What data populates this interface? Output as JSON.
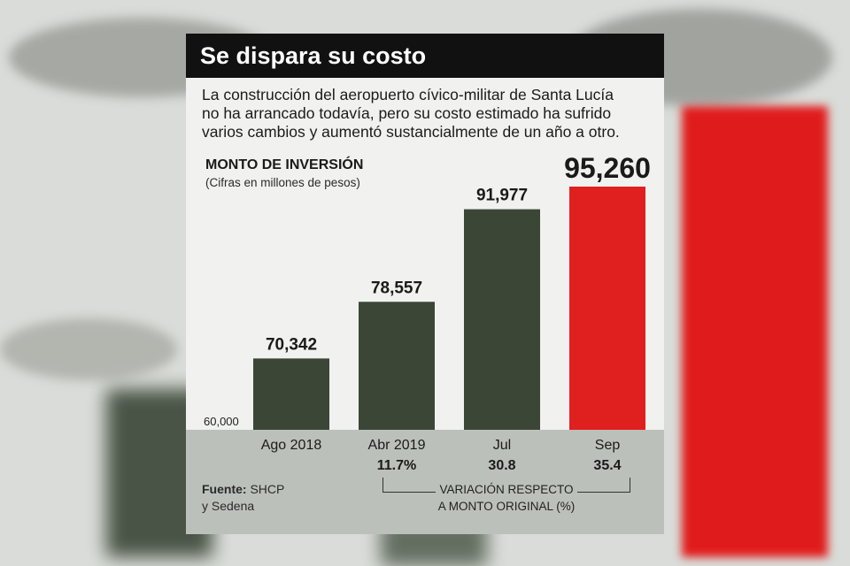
{
  "title": "Se dispara su costo",
  "description_lines": [
    "La construcción del aeropuerto cívico-militar de Santa Lucía",
    "no ha arrancado todavía, pero su costo estimado ha sufrido",
    "varios cambios y aumentó sustancialmente de un año a otro."
  ],
  "chart_data": {
    "type": "bar",
    "title": "MONTO DE INVERSIÓN",
    "subtitle": "(Cifras en millones de pesos)",
    "categories": [
      "Ago 2018",
      "Abr 2019",
      "Jul",
      "Sep"
    ],
    "values": [
      70342,
      78557,
      91977,
      95260
    ],
    "value_labels": [
      "70,342",
      "78,557",
      "91,977",
      "95,260"
    ],
    "variation_labels": [
      "",
      "11.7%",
      "30.8",
      "35.4"
    ],
    "axis_tick_label": "60,000",
    "ylim": [
      60000,
      95260
    ],
    "colors": [
      "#3b4637",
      "#3b4637",
      "#3b4637",
      "#e01f1f"
    ]
  },
  "source": {
    "label": "Fuente:",
    "text_line1": "SHCP",
    "text_line2": "y Sedena"
  },
  "variation_caption": {
    "line1": "VARIACIÓN RESPECTO",
    "line2": "A MONTO ORIGINAL (%)"
  }
}
